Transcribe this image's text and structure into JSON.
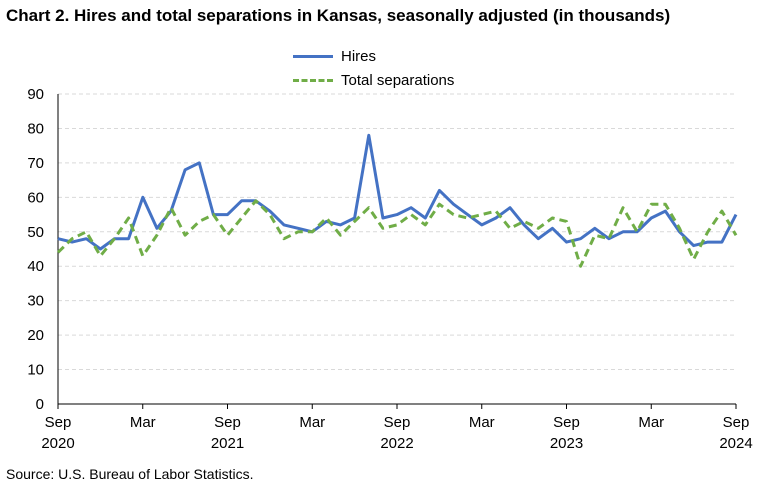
{
  "chart_data": {
    "type": "line",
    "title": "Chart 2. Hires and total separations in Kansas, seasonally adjusted (in thousands)",
    "ylim": [
      0,
      90
    ],
    "yticks": [
      0,
      10,
      20,
      30,
      40,
      50,
      60,
      70,
      80,
      90
    ],
    "x_start": "2020-09",
    "x_end": "2024-09",
    "x_ticks": [
      {
        "month": "2020-09",
        "label": "Sep",
        "year": "2020"
      },
      {
        "month": "2021-03",
        "label": "Mar",
        "year": ""
      },
      {
        "month": "2021-09",
        "label": "Sep",
        "year": "2021"
      },
      {
        "month": "2022-03",
        "label": "Mar",
        "year": ""
      },
      {
        "month": "2022-09",
        "label": "Sep",
        "year": "2022"
      },
      {
        "month": "2023-03",
        "label": "Mar",
        "year": ""
      },
      {
        "month": "2023-09",
        "label": "Sep",
        "year": "2023"
      },
      {
        "month": "2024-03",
        "label": "Mar",
        "year": ""
      },
      {
        "month": "2024-09",
        "label": "Sep",
        "year": "2024"
      }
    ],
    "grid": true,
    "legend_position": "top-center",
    "x": [
      "2020-09",
      "2020-10",
      "2020-11",
      "2020-12",
      "2021-01",
      "2021-02",
      "2021-03",
      "2021-04",
      "2021-05",
      "2021-06",
      "2021-07",
      "2021-08",
      "2021-09",
      "2021-10",
      "2021-11",
      "2021-12",
      "2022-01",
      "2022-02",
      "2022-03",
      "2022-04",
      "2022-05",
      "2022-06",
      "2022-07",
      "2022-08",
      "2022-09",
      "2022-10",
      "2022-11",
      "2022-12",
      "2023-01",
      "2023-02",
      "2023-03",
      "2023-04",
      "2023-05",
      "2023-06",
      "2023-07",
      "2023-08",
      "2023-09",
      "2023-10",
      "2023-11",
      "2023-12",
      "2024-01",
      "2024-02",
      "2024-03",
      "2024-04",
      "2024-05",
      "2024-06",
      "2024-07",
      "2024-08",
      "2024-09"
    ],
    "series": [
      {
        "name": "Hires",
        "color": "#4472c4",
        "dash": "solid",
        "values": [
          48,
          47,
          48,
          45,
          48,
          48,
          60,
          51,
          56,
          68,
          70,
          55,
          55,
          59,
          59,
          56,
          52,
          51,
          50,
          53,
          52,
          54,
          78,
          54,
          55,
          57,
          54,
          62,
          58,
          55,
          52,
          54,
          57,
          52,
          48,
          51,
          47,
          48,
          51,
          48,
          50,
          50,
          54,
          56,
          50,
          46,
          47,
          47,
          55
        ]
      },
      {
        "name": "Total separations",
        "color": "#70ad47",
        "dash": "dashed",
        "values": [
          44,
          48,
          50,
          43,
          48,
          54,
          43,
          49,
          57,
          49,
          53,
          55,
          49,
          54,
          59,
          55,
          48,
          50,
          50,
          54,
          49,
          53,
          57,
          51,
          52,
          55,
          52,
          58,
          55,
          54,
          55,
          56,
          51,
          53,
          51,
          54,
          53,
          40,
          49,
          48,
          57,
          50,
          58,
          58,
          51,
          42,
          50,
          56,
          49
        ]
      }
    ]
  },
  "source": "Source: U.S. Bureau of Labor Statistics."
}
